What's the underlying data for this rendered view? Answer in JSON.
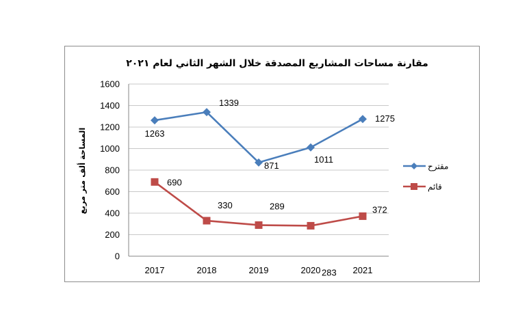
{
  "chart_data": {
    "type": "line",
    "title": "مقارنة مساحات المشاريع المصدقة خلال الشهر الثاني لعام ٢٠٢١",
    "xlabel": "",
    "ylabel": "المساحة ألف متر مربع",
    "categories": [
      "2017",
      "2018",
      "2019",
      "2020",
      "2021"
    ],
    "ylim": [
      0,
      1600
    ],
    "yticks": [
      "0",
      "200",
      "400",
      "600",
      "800",
      "1000",
      "1200",
      "1400",
      "1600"
    ],
    "grid": true,
    "legend_position": "right",
    "series": [
      {
        "name": "مقترح",
        "values": [
          1263,
          1339,
          871,
          1011,
          1275
        ],
        "color": "#4a7ebb",
        "marker": "diamond"
      },
      {
        "name": "قائم",
        "values": [
          690,
          330,
          289,
          283,
          372
        ],
        "color": "#be4b48",
        "marker": "square"
      }
    ]
  }
}
